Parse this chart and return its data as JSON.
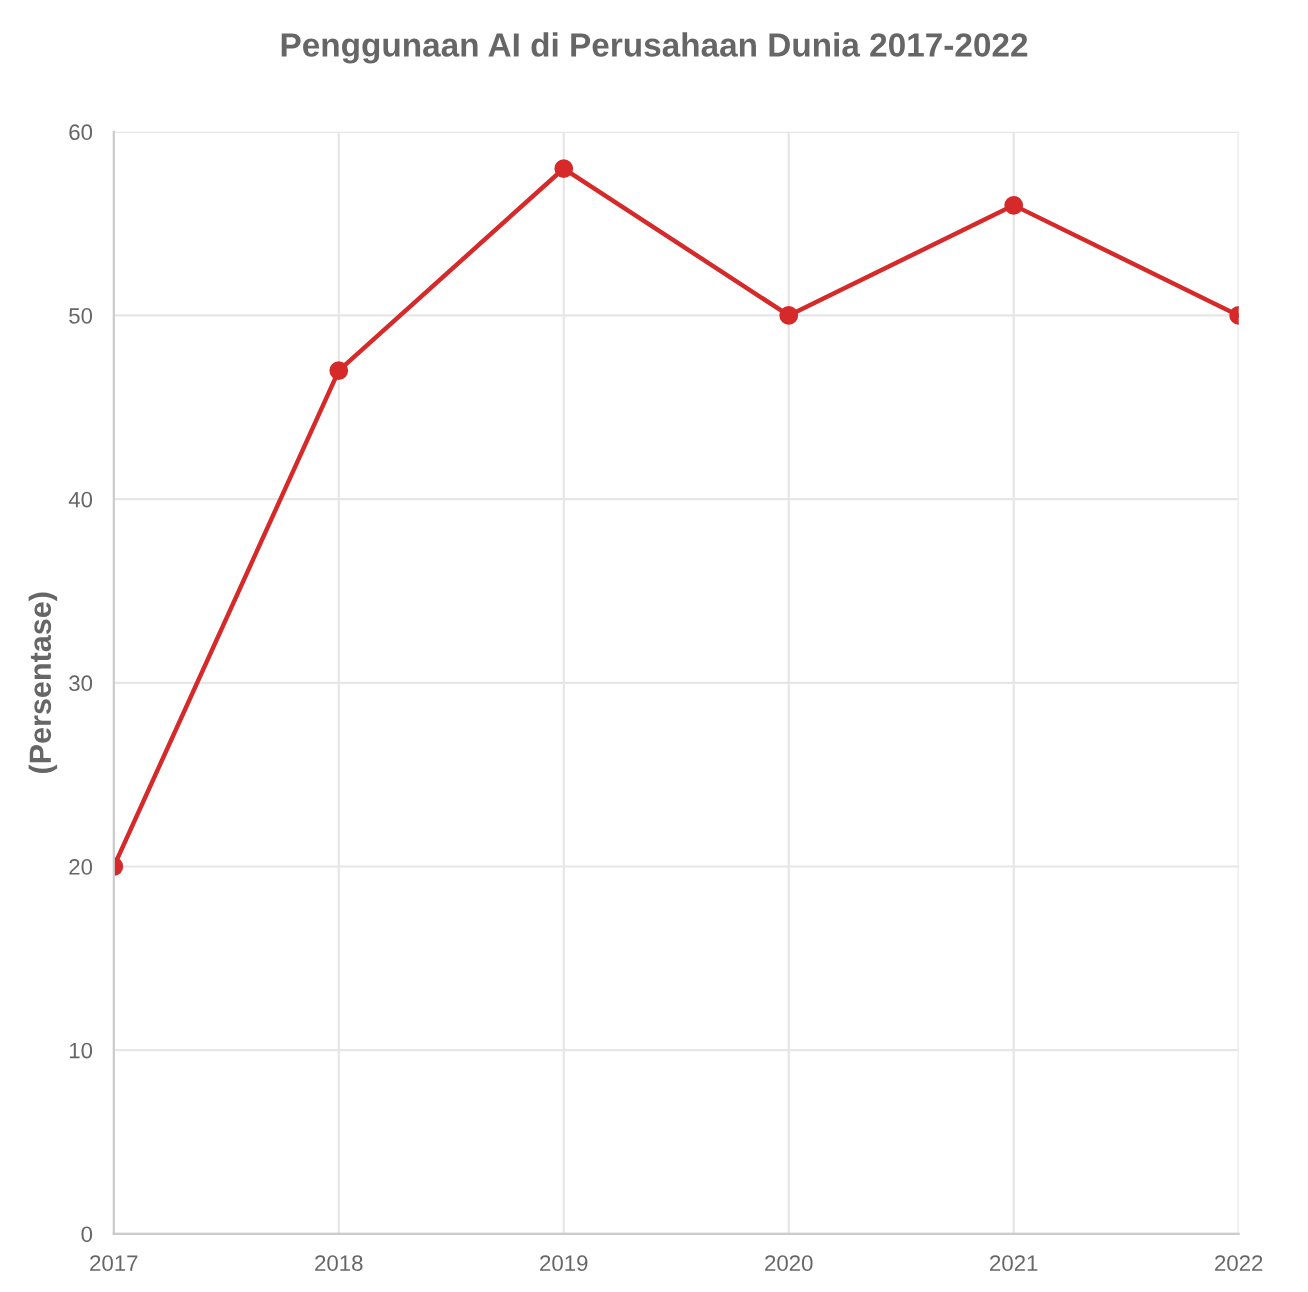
{
  "chart_data": {
    "type": "line",
    "title": "Penggunaan AI di Perusahaan Dunia 2017-2022",
    "ylabel": "(Persentase)",
    "categories": [
      "2017",
      "2018",
      "2019",
      "2020",
      "2021",
      "2022"
    ],
    "series": [
      {
        "color": "#d62a2a",
        "values": [
          20,
          47,
          58,
          50,
          56,
          50
        ]
      }
    ],
    "ylim": [
      0,
      60
    ],
    "yticks": [
      0,
      10,
      20,
      30,
      40,
      50,
      60
    ],
    "grid": true,
    "marker": "circle",
    "line_style": "solid",
    "legend": false
  }
}
